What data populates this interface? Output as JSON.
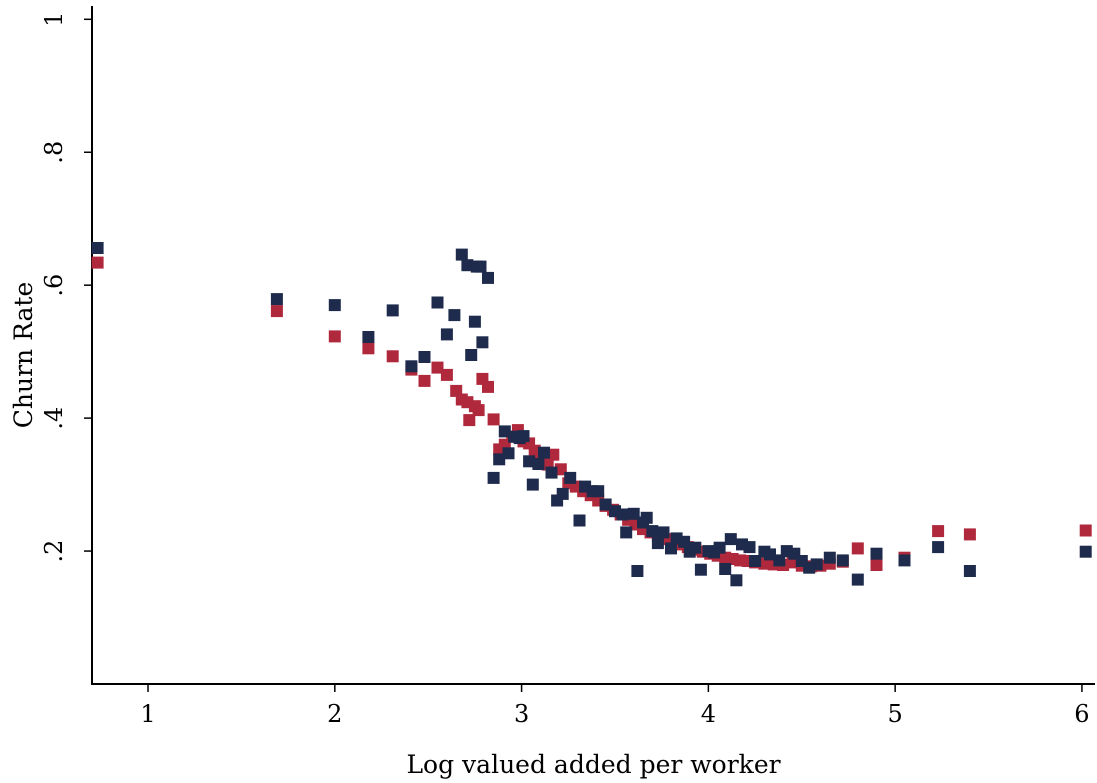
{
  "chart_data": {
    "type": "scatter",
    "title": "",
    "xlabel": "Log valued added per worker",
    "ylabel": "Churn Rate",
    "xlim": [
      0.7,
      6.07
    ],
    "ylim": [
      0,
      1.02
    ],
    "x_ticks": [
      1,
      2,
      3,
      4,
      5,
      6
    ],
    "x_tick_labels": [
      "1",
      "2",
      "3",
      "4",
      "5",
      "6"
    ],
    "y_ticks": [
      0.2,
      0.4,
      0.6,
      0.8,
      1
    ],
    "y_tick_labels": [
      ".2",
      ".4",
      ".6",
      ".8",
      "1"
    ],
    "grid": false,
    "legend": "none",
    "series": [
      {
        "color": "#b0283c",
        "marker": "square",
        "points": [
          [
            0.73,
            0.634
          ],
          [
            1.69,
            0.561
          ],
          [
            2.0,
            0.523
          ],
          [
            2.18,
            0.505
          ],
          [
            2.31,
            0.493
          ],
          [
            2.41,
            0.473
          ],
          [
            2.48,
            0.456
          ],
          [
            2.55,
            0.476
          ],
          [
            2.6,
            0.465
          ],
          [
            2.65,
            0.441
          ],
          [
            2.68,
            0.428
          ],
          [
            2.71,
            0.424
          ],
          [
            2.72,
            0.397
          ],
          [
            2.75,
            0.418
          ],
          [
            2.77,
            0.412
          ],
          [
            2.79,
            0.459
          ],
          [
            2.82,
            0.447
          ],
          [
            2.85,
            0.398
          ],
          [
            2.88,
            0.353
          ],
          [
            2.91,
            0.36
          ],
          [
            2.95,
            0.372
          ],
          [
            2.98,
            0.382
          ],
          [
            3.01,
            0.365
          ],
          [
            3.04,
            0.362
          ],
          [
            3.07,
            0.351
          ],
          [
            3.1,
            0.339
          ],
          [
            3.14,
            0.33
          ],
          [
            3.17,
            0.345
          ],
          [
            3.21,
            0.323
          ],
          [
            3.25,
            0.302
          ],
          [
            3.29,
            0.297
          ],
          [
            3.33,
            0.29
          ],
          [
            3.37,
            0.284
          ],
          [
            3.41,
            0.276
          ],
          [
            3.45,
            0.268
          ],
          [
            3.49,
            0.262
          ],
          [
            3.53,
            0.255
          ],
          [
            3.57,
            0.247
          ],
          [
            3.61,
            0.24
          ],
          [
            3.65,
            0.233
          ],
          [
            3.69,
            0.228
          ],
          [
            3.73,
            0.223
          ],
          [
            3.77,
            0.218
          ],
          [
            3.81,
            0.214
          ],
          [
            3.85,
            0.21
          ],
          [
            3.89,
            0.206
          ],
          [
            3.93,
            0.202
          ],
          [
            3.97,
            0.199
          ],
          [
            4.01,
            0.196
          ],
          [
            4.05,
            0.193
          ],
          [
            4.09,
            0.19
          ],
          [
            4.13,
            0.188
          ],
          [
            4.17,
            0.186
          ],
          [
            4.21,
            0.185
          ],
          [
            4.25,
            0.183
          ],
          [
            4.3,
            0.181
          ],
          [
            4.35,
            0.18
          ],
          [
            4.4,
            0.179
          ],
          [
            4.45,
            0.183
          ],
          [
            4.5,
            0.178
          ],
          [
            4.55,
            0.177
          ],
          [
            4.6,
            0.178
          ],
          [
            4.65,
            0.181
          ],
          [
            4.72,
            0.184
          ],
          [
            4.8,
            0.204
          ],
          [
            4.9,
            0.179
          ],
          [
            5.05,
            0.19
          ],
          [
            5.23,
            0.23
          ],
          [
            5.4,
            0.225
          ],
          [
            6.02,
            0.231
          ]
        ]
      },
      {
        "color": "#1f2b4d",
        "marker": "square",
        "points": [
          [
            0.73,
            0.656
          ],
          [
            1.69,
            0.579
          ],
          [
            2.0,
            0.57
          ],
          [
            2.18,
            0.522
          ],
          [
            2.31,
            0.562
          ],
          [
            2.41,
            0.478
          ],
          [
            2.48,
            0.492
          ],
          [
            2.55,
            0.574
          ],
          [
            2.6,
            0.526
          ],
          [
            2.64,
            0.555
          ],
          [
            2.68,
            0.646
          ],
          [
            2.71,
            0.63
          ],
          [
            2.73,
            0.495
          ],
          [
            2.75,
            0.545
          ],
          [
            2.76,
            0.628
          ],
          [
            2.78,
            0.628
          ],
          [
            2.79,
            0.514
          ],
          [
            2.82,
            0.611
          ],
          [
            2.85,
            0.31
          ],
          [
            2.88,
            0.338
          ],
          [
            2.91,
            0.38
          ],
          [
            2.93,
            0.347
          ],
          [
            2.96,
            0.372
          ],
          [
            2.99,
            0.37
          ],
          [
            3.01,
            0.373
          ],
          [
            3.04,
            0.335
          ],
          [
            3.06,
            0.3
          ],
          [
            3.09,
            0.331
          ],
          [
            3.12,
            0.348
          ],
          [
            3.16,
            0.318
          ],
          [
            3.19,
            0.276
          ],
          [
            3.22,
            0.286
          ],
          [
            3.26,
            0.31
          ],
          [
            3.31,
            0.246
          ],
          [
            3.34,
            0.297
          ],
          [
            3.38,
            0.29
          ],
          [
            3.41,
            0.29
          ],
          [
            3.45,
            0.27
          ],
          [
            3.5,
            0.26
          ],
          [
            3.54,
            0.255
          ],
          [
            3.56,
            0.228
          ],
          [
            3.6,
            0.256
          ],
          [
            3.62,
            0.17
          ],
          [
            3.65,
            0.243
          ],
          [
            3.67,
            0.25
          ],
          [
            3.7,
            0.23
          ],
          [
            3.73,
            0.212
          ],
          [
            3.76,
            0.228
          ],
          [
            3.8,
            0.204
          ],
          [
            3.83,
            0.219
          ],
          [
            3.87,
            0.214
          ],
          [
            3.9,
            0.199
          ],
          [
            3.93,
            0.205
          ],
          [
            3.96,
            0.172
          ],
          [
            4.0,
            0.2
          ],
          [
            4.03,
            0.198
          ],
          [
            4.06,
            0.205
          ],
          [
            4.09,
            0.173
          ],
          [
            4.12,
            0.218
          ],
          [
            4.15,
            0.156
          ],
          [
            4.18,
            0.21
          ],
          [
            4.22,
            0.206
          ],
          [
            4.25,
            0.185
          ],
          [
            4.3,
            0.199
          ],
          [
            4.33,
            0.195
          ],
          [
            4.38,
            0.186
          ],
          [
            4.42,
            0.2
          ],
          [
            4.46,
            0.196
          ],
          [
            4.5,
            0.185
          ],
          [
            4.54,
            0.175
          ],
          [
            4.58,
            0.18
          ],
          [
            4.65,
            0.19
          ],
          [
            4.72,
            0.186
          ],
          [
            4.8,
            0.157
          ],
          [
            4.9,
            0.196
          ],
          [
            5.05,
            0.186
          ],
          [
            5.23,
            0.206
          ],
          [
            5.4,
            0.17
          ],
          [
            6.02,
            0.199
          ]
        ]
      }
    ]
  }
}
